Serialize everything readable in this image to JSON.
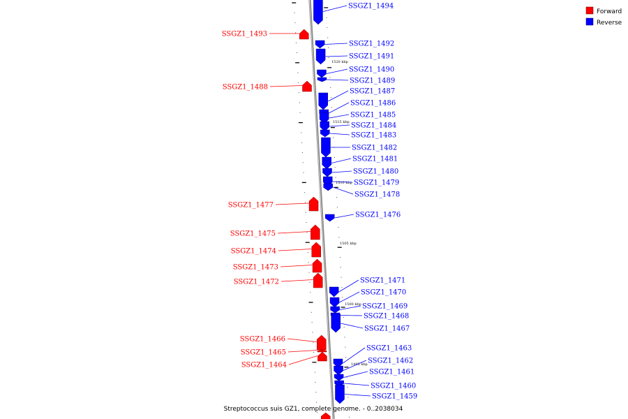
{
  "caption": "Streptococcus suis GZ1, complete genome. - 0..2038034",
  "legend": [
    {
      "label": "Forward",
      "color": "#ff0000"
    },
    {
      "label": "Reverse",
      "color": "#0000ff"
    }
  ],
  "scale_labels": [
    "1520 kbp",
    "1515 kbp",
    "1510 kbp",
    "1505 kbp",
    "1500 kbp",
    "1495 kbp"
  ],
  "genes": [
    {
      "name": "SSGZ1_1494",
      "strand": "reverse"
    },
    {
      "name": "SSGZ1_1493",
      "strand": "forward"
    },
    {
      "name": "SSGZ1_1492",
      "strand": "reverse"
    },
    {
      "name": "SSGZ1_1491",
      "strand": "reverse"
    },
    {
      "name": "SSGZ1_1490",
      "strand": "reverse"
    },
    {
      "name": "SSGZ1_1489",
      "strand": "reverse"
    },
    {
      "name": "SSGZ1_1488",
      "strand": "forward"
    },
    {
      "name": "SSGZ1_1487",
      "strand": "reverse"
    },
    {
      "name": "SSGZ1_1486",
      "strand": "reverse"
    },
    {
      "name": "SSGZ1_1485",
      "strand": "reverse"
    },
    {
      "name": "SSGZ1_1484",
      "strand": "reverse"
    },
    {
      "name": "SSGZ1_1483",
      "strand": "reverse"
    },
    {
      "name": "SSGZ1_1482",
      "strand": "reverse"
    },
    {
      "name": "SSGZ1_1481",
      "strand": "reverse"
    },
    {
      "name": "SSGZ1_1480",
      "strand": "reverse"
    },
    {
      "name": "SSGZ1_1479",
      "strand": "reverse"
    },
    {
      "name": "SSGZ1_1478",
      "strand": "reverse"
    },
    {
      "name": "SSGZ1_1477",
      "strand": "forward"
    },
    {
      "name": "SSGZ1_1476",
      "strand": "reverse"
    },
    {
      "name": "SSGZ1_1475",
      "strand": "forward"
    },
    {
      "name": "SSGZ1_1474",
      "strand": "forward"
    },
    {
      "name": "SSGZ1_1473",
      "strand": "forward"
    },
    {
      "name": "SSGZ1_1472",
      "strand": "forward"
    },
    {
      "name": "SSGZ1_1471",
      "strand": "reverse"
    },
    {
      "name": "SSGZ1_1470",
      "strand": "reverse"
    },
    {
      "name": "SSGZ1_1469",
      "strand": "reverse"
    },
    {
      "name": "SSGZ1_1468",
      "strand": "reverse"
    },
    {
      "name": "SSGZ1_1467",
      "strand": "reverse"
    },
    {
      "name": "SSGZ1_1466",
      "strand": "forward"
    },
    {
      "name": "SSGZ1_1465",
      "strand": "forward"
    },
    {
      "name": "SSGZ1_1464",
      "strand": "forward"
    },
    {
      "name": "SSGZ1_1463",
      "strand": "reverse"
    },
    {
      "name": "SSGZ1_1462",
      "strand": "reverse"
    },
    {
      "name": "SSGZ1_1461",
      "strand": "reverse"
    },
    {
      "name": "SSGZ1_1460",
      "strand": "reverse"
    },
    {
      "name": "SSGZ1_1459",
      "strand": "reverse"
    }
  ]
}
